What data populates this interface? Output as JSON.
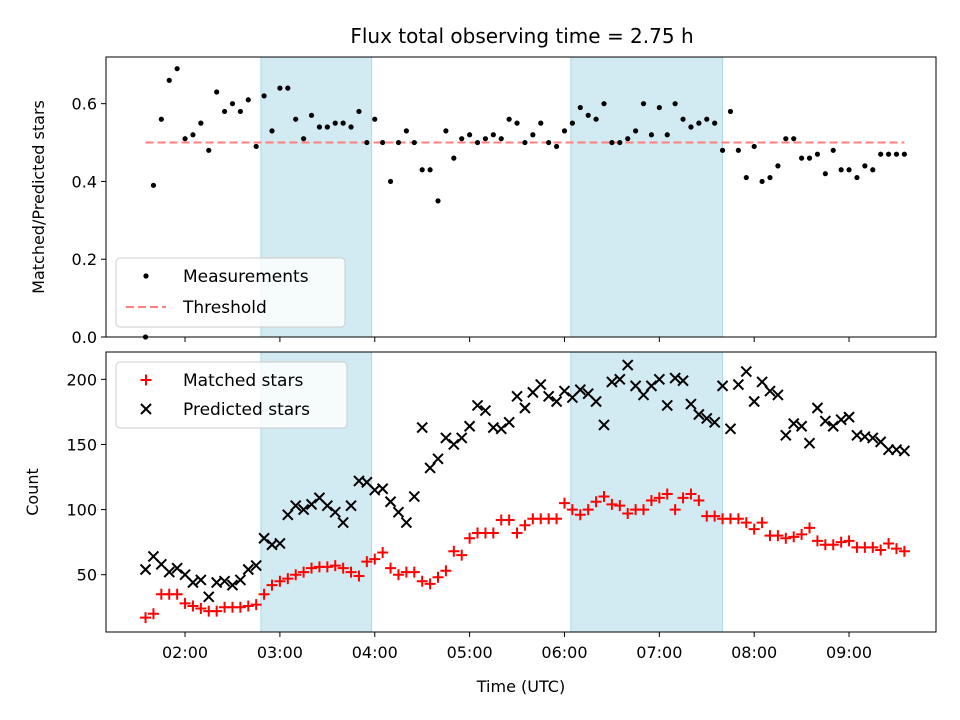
{
  "title": "Flux total observing time = 2.75 h",
  "colors": {
    "shade": "#add8e6",
    "measurement": "#000000",
    "threshold": "#ff7f7f",
    "matched": "#ff0000",
    "predicted": "#000000"
  },
  "chart_data": [
    {
      "type": "scatter",
      "ylabel": "Matched/Predicted stars",
      "ylim": [
        0,
        0.72
      ],
      "yticks": [
        "0.0",
        "0.2",
        "0.4",
        "0.6"
      ],
      "ytick_values": [
        0.0,
        0.2,
        0.4,
        0.6
      ],
      "xlim": [
        "01:10",
        "09:55"
      ],
      "shaded_intervals": [
        [
          "02:48",
          "03:58"
        ],
        [
          "06:04",
          "07:40"
        ]
      ],
      "legend": {
        "position": "lower-left",
        "entries": [
          "Measurements",
          "Threshold"
        ]
      },
      "threshold": {
        "name": "Threshold",
        "value": 0.5,
        "x_range": [
          "01:35",
          "09:35"
        ]
      },
      "series": [
        {
          "name": "Measurements",
          "x": [
            "01:35",
            "01:40",
            "01:45",
            "01:50",
            "01:55",
            "02:00",
            "02:05",
            "02:10",
            "02:15",
            "02:20",
            "02:25",
            "02:30",
            "02:35",
            "02:40",
            "02:45",
            "02:50",
            "02:55",
            "03:00",
            "03:05",
            "03:10",
            "03:15",
            "03:20",
            "03:25",
            "03:30",
            "03:35",
            "03:40",
            "03:45",
            "03:50",
            "03:55",
            "04:00",
            "04:05",
            "04:10",
            "04:15",
            "04:20",
            "04:25",
            "04:30",
            "04:35",
            "04:40",
            "04:45",
            "04:50",
            "04:55",
            "05:00",
            "05:05",
            "05:10",
            "05:15",
            "05:20",
            "05:25",
            "05:30",
            "05:35",
            "05:40",
            "05:45",
            "05:50",
            "05:55",
            "06:00",
            "06:05",
            "06:10",
            "06:15",
            "06:20",
            "06:25",
            "06:30",
            "06:35",
            "06:40",
            "06:45",
            "06:50",
            "06:55",
            "07:00",
            "07:05",
            "07:10",
            "07:15",
            "07:20",
            "07:25",
            "07:30",
            "07:35",
            "07:40",
            "07:45",
            "07:50",
            "07:55",
            "08:00",
            "08:05",
            "08:10",
            "08:15",
            "08:20",
            "08:25",
            "08:30",
            "08:35",
            "08:40",
            "08:45",
            "08:50",
            "08:55",
            "09:00",
            "09:05",
            "09:10",
            "09:15",
            "09:20",
            "09:25",
            "09:30",
            "09:35"
          ],
          "y": [
            0.0,
            0.39,
            0.56,
            0.66,
            0.69,
            0.51,
            0.52,
            0.55,
            0.48,
            0.63,
            0.58,
            0.6,
            0.58,
            0.61,
            0.49,
            0.62,
            0.53,
            0.64,
            0.64,
            0.56,
            0.51,
            0.57,
            0.54,
            0.54,
            0.55,
            0.55,
            0.54,
            0.58,
            0.5,
            0.56,
            0.5,
            0.4,
            0.5,
            0.53,
            0.5,
            0.43,
            0.43,
            0.35,
            0.53,
            0.46,
            0.51,
            0.52,
            0.5,
            0.51,
            0.52,
            0.51,
            0.56,
            0.55,
            0.5,
            0.52,
            0.55,
            0.5,
            0.49,
            0.53,
            0.55,
            0.59,
            0.57,
            0.56,
            0.6,
            0.5,
            0.5,
            0.51,
            0.53,
            0.6,
            0.52,
            0.59,
            0.52,
            0.6,
            0.56,
            0.54,
            0.55,
            0.56,
            0.55,
            0.48,
            0.58,
            0.48,
            0.41,
            0.49,
            0.4,
            0.41,
            0.44,
            0.51,
            0.51,
            0.46,
            0.46,
            0.47,
            0.42,
            0.48,
            0.43,
            0.43,
            0.41,
            0.44,
            0.43,
            0.47,
            0.47,
            0.47,
            0.47
          ]
        }
      ]
    },
    {
      "type": "scatter",
      "xlabel": "Time (UTC)",
      "ylabel": "Count",
      "ylim": [
        6,
        221
      ],
      "yticks": [
        "50",
        "100",
        "150",
        "200"
      ],
      "ytick_values": [
        50,
        100,
        150,
        200
      ],
      "xlim": [
        "01:10",
        "09:55"
      ],
      "xticks": [
        "02:00",
        "03:00",
        "04:00",
        "05:00",
        "06:00",
        "07:00",
        "08:00",
        "09:00"
      ],
      "shaded_intervals": [
        [
          "02:48",
          "03:58"
        ],
        [
          "06:04",
          "07:40"
        ]
      ],
      "legend": {
        "position": "upper-left",
        "entries": [
          "Matched stars",
          "Predicted stars"
        ]
      },
      "series": [
        {
          "name": "Matched stars",
          "x": [
            "01:35",
            "01:40",
            "01:45",
            "01:50",
            "01:55",
            "02:00",
            "02:05",
            "02:10",
            "02:15",
            "02:20",
            "02:25",
            "02:30",
            "02:35",
            "02:40",
            "02:45",
            "02:50",
            "02:55",
            "03:00",
            "03:05",
            "03:10",
            "03:15",
            "03:20",
            "03:25",
            "03:30",
            "03:35",
            "03:40",
            "03:45",
            "03:50",
            "03:55",
            "04:00",
            "04:05",
            "04:10",
            "04:15",
            "04:20",
            "04:25",
            "04:30",
            "04:35",
            "04:40",
            "04:45",
            "04:50",
            "04:55",
            "05:00",
            "05:05",
            "05:10",
            "05:15",
            "05:20",
            "05:25",
            "05:30",
            "05:35",
            "05:40",
            "05:45",
            "05:50",
            "05:55",
            "06:00",
            "06:05",
            "06:10",
            "06:15",
            "06:20",
            "06:25",
            "06:30",
            "06:35",
            "06:40",
            "06:45",
            "06:50",
            "06:55",
            "07:00",
            "07:05",
            "07:10",
            "07:15",
            "07:20",
            "07:25",
            "07:30",
            "07:35",
            "07:40",
            "07:45",
            "07:50",
            "07:55",
            "08:00",
            "08:05",
            "08:10",
            "08:15",
            "08:20",
            "08:25",
            "08:30",
            "08:35",
            "08:40",
            "08:45",
            "08:50",
            "08:55",
            "09:00",
            "09:05",
            "09:10",
            "09:15",
            "09:20",
            "09:25",
            "09:30",
            "09:35"
          ],
          "y": [
            17,
            20,
            35,
            35,
            35,
            28,
            26,
            24,
            22,
            22,
            25,
            25,
            25,
            26,
            27,
            35,
            42,
            45,
            47,
            50,
            52,
            55,
            56,
            56,
            57,
            55,
            52,
            49,
            60,
            62,
            67,
            55,
            50,
            52,
            52,
            45,
            43,
            48,
            53,
            68,
            65,
            78,
            82,
            82,
            82,
            92,
            92,
            82,
            88,
            93,
            93,
            93,
            93,
            105,
            100,
            96,
            100,
            106,
            110,
            104,
            103,
            97,
            100,
            100,
            107,
            109,
            112,
            100,
            109,
            112,
            107,
            95,
            95,
            93,
            93,
            93,
            90,
            85,
            90,
            80,
            80,
            78,
            79,
            81,
            86,
            76,
            73,
            73,
            75,
            76,
            71,
            71,
            71,
            69,
            74,
            70,
            68
          ]
        },
        {
          "name": "Predicted stars",
          "x": [
            "01:35",
            "01:40",
            "01:45",
            "01:50",
            "01:55",
            "02:00",
            "02:05",
            "02:10",
            "02:15",
            "02:20",
            "02:25",
            "02:30",
            "02:35",
            "02:40",
            "02:45",
            "02:50",
            "02:55",
            "03:00",
            "03:05",
            "03:10",
            "03:15",
            "03:20",
            "03:25",
            "03:30",
            "03:35",
            "03:40",
            "03:45",
            "03:50",
            "03:55",
            "04:00",
            "04:05",
            "04:10",
            "04:15",
            "04:20",
            "04:25",
            "04:30",
            "04:35",
            "04:40",
            "04:45",
            "04:50",
            "04:55",
            "05:00",
            "05:05",
            "05:10",
            "05:15",
            "05:20",
            "05:25",
            "05:30",
            "05:35",
            "05:40",
            "05:45",
            "05:50",
            "05:55",
            "06:00",
            "06:05",
            "06:10",
            "06:15",
            "06:20",
            "06:25",
            "06:30",
            "06:35",
            "06:40",
            "06:45",
            "06:50",
            "06:55",
            "07:00",
            "07:05",
            "07:10",
            "07:15",
            "07:20",
            "07:25",
            "07:30",
            "07:35",
            "07:40",
            "07:45",
            "07:50",
            "07:55",
            "08:00",
            "08:05",
            "08:10",
            "08:15",
            "08:20",
            "08:25",
            "08:30",
            "08:35",
            "08:40",
            "08:45",
            "08:50",
            "08:55",
            "09:00",
            "09:05",
            "09:10",
            "09:15",
            "09:20",
            "09:25",
            "09:30",
            "09:35"
          ],
          "y": [
            54,
            64,
            58,
            52,
            55,
            50,
            44,
            46,
            33,
            44,
            45,
            42,
            46,
            54,
            57,
            78,
            73,
            74,
            96,
            103,
            100,
            104,
            109,
            103,
            98,
            90,
            103,
            122,
            121,
            115,
            116,
            106,
            98,
            90,
            110,
            163,
            132,
            139,
            155,
            150,
            155,
            164,
            180,
            176,
            163,
            162,
            167,
            187,
            178,
            190,
            196,
            187,
            183,
            191,
            186,
            192,
            189,
            183,
            165,
            198,
            200,
            211,
            195,
            188,
            195,
            200,
            180,
            201,
            199,
            181,
            173,
            170,
            167,
            195,
            162,
            196,
            206,
            183,
            198,
            191,
            188,
            157,
            166,
            164,
            151,
            178,
            168,
            164,
            169,
            171,
            157,
            156,
            155,
            152,
            146,
            146,
            145
          ]
        }
      ]
    }
  ]
}
